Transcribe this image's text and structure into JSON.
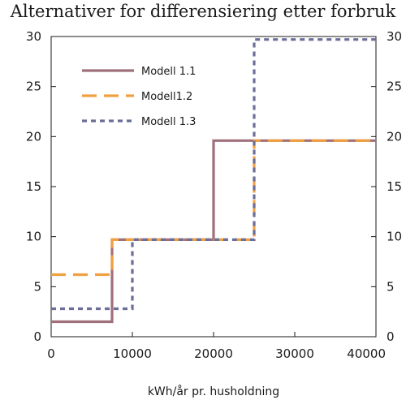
{
  "chart_data": {
    "type": "line",
    "step": true,
    "title": "Alternativer for differensiering etter forbruk",
    "xlabel": "kWh/år pr. husholdning",
    "ylabel": "",
    "xlim": [
      0,
      40000
    ],
    "ylim": [
      0,
      30
    ],
    "x_ticks": [
      0,
      10000,
      20000,
      30000,
      40000
    ],
    "y_ticks": [
      0,
      5,
      10,
      15,
      20,
      25,
      30
    ],
    "y_right_ticks": [
      0,
      5,
      10,
      15,
      20,
      25,
      30
    ],
    "grid": false,
    "legend_position": "top-left",
    "series": [
      {
        "name": "Modell 1.1",
        "color": "#a0707a",
        "style": "solid",
        "points": [
          [
            0,
            1.5
          ],
          [
            7500,
            1.5
          ],
          [
            7500,
            9.7
          ],
          [
            20000,
            9.7
          ],
          [
            20000,
            19.6
          ],
          [
            40000,
            19.6
          ]
        ]
      },
      {
        "name": "Modell1.2",
        "color": "#f0a040",
        "style": "dashed",
        "points": [
          [
            0,
            6.2
          ],
          [
            7500,
            6.2
          ],
          [
            7500,
            9.7
          ],
          [
            25000,
            9.7
          ],
          [
            25000,
            19.6
          ],
          [
            40000,
            19.6
          ]
        ]
      },
      {
        "name": "Modell 1.3",
        "color": "#6a6e98",
        "style": "dotted",
        "points": [
          [
            0,
            2.8
          ],
          [
            10000,
            2.8
          ],
          [
            10000,
            9.7
          ],
          [
            25000,
            9.7
          ],
          [
            25000,
            29.7
          ],
          [
            40000,
            29.7
          ]
        ]
      }
    ]
  }
}
